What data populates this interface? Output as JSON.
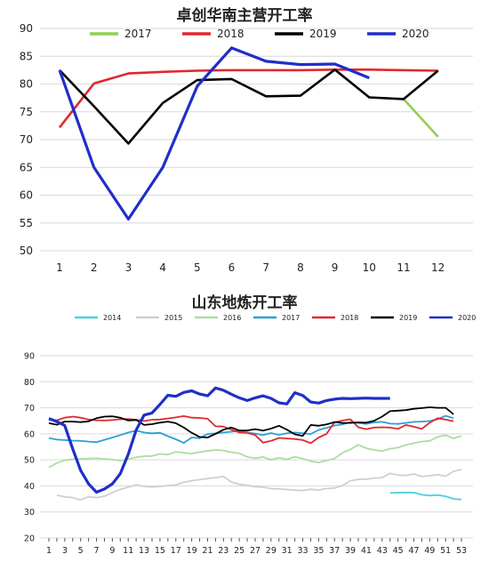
{
  "chart_data": [
    {
      "type": "line",
      "title": "卓创华南主营开工率",
      "xlabel": "",
      "ylabel": "",
      "categories": [
        "1",
        "2",
        "3",
        "4",
        "5",
        "6",
        "7",
        "8",
        "9",
        "10",
        "11",
        "12"
      ],
      "ylim": [
        50,
        90
      ],
      "yticks": [
        50,
        55,
        60,
        65,
        70,
        75,
        80,
        85,
        90
      ],
      "grid": true,
      "legend_position": "top",
      "series": [
        {
          "name": "2017",
          "color": "#92d050",
          "values": [
            null,
            null,
            null,
            null,
            null,
            null,
            null,
            null,
            null,
            null,
            77.3,
            70.5
          ]
        },
        {
          "name": "2018",
          "color": "#e0282e",
          "values": [
            72.2,
            80.1,
            81.9,
            82.2,
            82.4,
            82.5,
            82.5,
            82.5,
            82.6,
            82.6,
            82.5,
            82.4
          ]
        },
        {
          "name": "2019",
          "color": "#000000",
          "values": [
            82.5,
            76.0,
            69.3,
            76.6,
            80.7,
            80.9,
            77.8,
            77.9,
            82.6,
            77.6,
            77.3,
            82.4
          ]
        },
        {
          "name": "2020",
          "color": "#1f2fc8",
          "values": [
            82.5,
            65.0,
            55.7,
            65.0,
            79.6,
            86.5,
            84.1,
            83.5,
            83.6,
            81.1,
            null,
            null
          ]
        }
      ]
    },
    {
      "type": "line",
      "title": "山东地炼开工率",
      "xlabel": "",
      "ylabel": "",
      "categories": [
        "1",
        "3",
        "5",
        "7",
        "9",
        "11",
        "13",
        "15",
        "17",
        "19",
        "21",
        "23",
        "25",
        "27",
        "29",
        "31",
        "33",
        "35",
        "37",
        "39",
        "41",
        "43",
        "45",
        "47",
        "49",
        "51",
        "53"
      ],
      "x_range": [
        1,
        53
      ],
      "ylim": [
        20,
        90
      ],
      "yticks": [
        20,
        30,
        40,
        50,
        60,
        70,
        80,
        90
      ],
      "grid": true,
      "legend_position": "top",
      "series": [
        {
          "name": "2014",
          "color": "#4fd0e0",
          "x": [
            44,
            46,
            47,
            48,
            49,
            50,
            51,
            52,
            53
          ],
          "values": [
            37.3,
            37.5,
            37.4,
            36.6,
            36.3,
            36.5,
            36.0,
            35.0,
            34.8
          ]
        },
        {
          "name": "2015",
          "color": "#cfcfcf",
          "x": [
            2,
            3,
            4,
            5,
            6,
            7,
            8,
            9,
            10,
            11,
            12,
            13,
            14,
            15,
            16,
            17,
            18,
            19,
            20,
            21,
            22,
            23,
            24,
            25,
            26,
            27,
            28,
            29,
            30,
            31,
            32,
            33,
            34,
            35,
            36,
            37,
            38,
            39,
            40,
            41,
            42,
            43,
            44,
            45,
            46,
            47,
            48,
            49,
            50,
            51,
            52,
            53
          ],
          "values": [
            36.5,
            35.8,
            35.5,
            34.6,
            35.8,
            35.5,
            36.0,
            37.5,
            38.7,
            39.5,
            40.4,
            39.8,
            39.6,
            39.8,
            40.1,
            40.4,
            41.4,
            42.0,
            42.4,
            42.8,
            43.2,
            43.6,
            41.5,
            40.6,
            40.2,
            39.7,
            39.5,
            39.0,
            38.8,
            38.6,
            38.4,
            38.2,
            38.7,
            38.4,
            39.0,
            39.2,
            40.1,
            42.0,
            42.5,
            42.6,
            43.0,
            43.2,
            44.8,
            44.2,
            44.0,
            44.6,
            43.6,
            43.9,
            44.3,
            43.7,
            45.6,
            46.3
          ]
        },
        {
          "name": "2016",
          "color": "#a9dea0",
          "x": [
            1,
            2,
            3,
            4,
            5,
            6,
            7,
            8,
            9,
            10,
            11,
            12,
            13,
            14,
            15,
            16,
            17,
            18,
            19,
            20,
            21,
            22,
            23,
            24,
            25,
            26,
            27,
            28,
            29,
            30,
            31,
            32,
            33,
            34,
            35,
            36,
            37,
            38,
            39,
            40,
            41,
            42,
            43,
            44,
            45,
            46,
            47,
            48,
            49,
            50,
            51,
            52,
            53
          ],
          "values": [
            47.0,
            48.8,
            49.8,
            50.3,
            50.4,
            50.5,
            50.6,
            50.4,
            50.1,
            49.7,
            50.3,
            51.0,
            51.4,
            51.5,
            52.3,
            52.0,
            53.1,
            52.7,
            52.4,
            53.0,
            53.4,
            53.8,
            53.6,
            52.9,
            52.5,
            51.1,
            50.6,
            51.1,
            50.0,
            50.8,
            50.2,
            51.2,
            50.5,
            49.5,
            49.0,
            49.8,
            50.5,
            52.7,
            54.0,
            55.8,
            54.5,
            53.8,
            53.4,
            54.3,
            54.7,
            55.7,
            56.4,
            57.0,
            57.3,
            58.8,
            59.5,
            58.2,
            59.2
          ]
        },
        {
          "name": "2017",
          "color": "#2aa0d8",
          "x": [
            1,
            2,
            3,
            4,
            5,
            6,
            7,
            8,
            9,
            10,
            11,
            12,
            13,
            14,
            15,
            16,
            17,
            18,
            19,
            20,
            21,
            22,
            23,
            24,
            25,
            26,
            27,
            28,
            29,
            30,
            31,
            32,
            33,
            34,
            35,
            36,
            37,
            38,
            39,
            40,
            41,
            42,
            43,
            44,
            45,
            46,
            47,
            48,
            49,
            50,
            51,
            52
          ],
          "values": [
            58.3,
            57.8,
            57.6,
            57.4,
            57.3,
            57.0,
            56.8,
            57.7,
            58.6,
            59.5,
            60.5,
            61.2,
            60.5,
            60.2,
            60.4,
            59.1,
            57.9,
            56.5,
            58.6,
            58.3,
            59.9,
            60.2,
            60.5,
            60.8,
            61.1,
            60.5,
            60.1,
            59.5,
            60.3,
            59.6,
            60.2,
            60.5,
            60.2,
            59.9,
            61.5,
            62.3,
            63.2,
            63.6,
            64.5,
            64.2,
            63.8,
            64.4,
            64.6,
            63.9,
            63.8,
            64.2,
            64.6,
            64.7,
            64.9,
            65.6,
            66.9,
            66.0
          ]
        },
        {
          "name": "2018",
          "color": "#e0282e",
          "x": [
            1,
            2,
            3,
            4,
            5,
            6,
            7,
            8,
            9,
            10,
            11,
            12,
            13,
            14,
            15,
            16,
            17,
            18,
            19,
            20,
            21,
            22,
            23,
            24,
            25,
            26,
            27,
            28,
            29,
            30,
            31,
            32,
            33,
            34,
            35,
            36,
            37,
            38,
            39,
            40,
            41,
            42,
            43,
            44,
            45,
            46,
            47,
            48,
            49,
            50,
            51,
            52
          ],
          "values": [
            65.4,
            65.2,
            66.2,
            66.6,
            66.2,
            65.5,
            65.2,
            65.1,
            65.3,
            65.6,
            65.7,
            65.4,
            64.9,
            65.4,
            65.5,
            65.9,
            66.3,
            66.8,
            66.2,
            66.1,
            65.8,
            62.9,
            62.8,
            61.6,
            60.5,
            60.4,
            59.5,
            56.6,
            57.3,
            58.4,
            58.2,
            58.0,
            57.6,
            56.4,
            58.6,
            60.0,
            64.4,
            65.1,
            65.6,
            62.5,
            61.8,
            62.4,
            62.5,
            62.4,
            61.9,
            63.4,
            62.7,
            61.9,
            64.3,
            66.0,
            65.5,
            64.8
          ]
        },
        {
          "name": "2019",
          "color": "#000000",
          "x": [
            1,
            2,
            3,
            4,
            5,
            6,
            7,
            8,
            9,
            10,
            11,
            12,
            13,
            14,
            15,
            16,
            17,
            18,
            19,
            20,
            21,
            22,
            23,
            24,
            25,
            26,
            27,
            28,
            29,
            30,
            31,
            32,
            33,
            34,
            35,
            36,
            37,
            38,
            39,
            40,
            41,
            42,
            43,
            44,
            45,
            46,
            47,
            48,
            49,
            50,
            51,
            52
          ],
          "values": [
            64.1,
            63.5,
            64.7,
            64.7,
            64.5,
            64.8,
            66.0,
            66.6,
            66.7,
            66.2,
            65.1,
            65.3,
            63.4,
            63.7,
            64.3,
            64.7,
            64.1,
            62.4,
            60.4,
            58.8,
            58.6,
            60.0,
            61.6,
            62.4,
            61.3,
            61.3,
            61.8,
            61.2,
            62.0,
            63.1,
            61.6,
            59.8,
            59.2,
            63.4,
            63.1,
            63.6,
            64.5,
            64.2,
            64.2,
            64.4,
            64.3,
            65.0,
            66.6,
            68.7,
            68.9,
            69.1,
            69.6,
            69.9,
            70.2,
            70.0,
            70.0,
            67.5
          ]
        },
        {
          "name": "2020",
          "color": "#1f2fc8",
          "x": [
            1,
            2,
            3,
            4,
            5,
            6,
            7,
            8,
            9,
            10,
            11,
            12,
            13,
            14,
            15,
            16,
            17,
            18,
            19,
            20,
            21,
            22,
            23,
            24,
            25,
            26,
            27,
            28,
            29,
            30,
            31,
            32,
            33,
            34,
            35,
            36,
            37,
            38,
            39,
            40,
            41,
            42,
            43,
            44
          ],
          "values": [
            65.9,
            64.7,
            63.2,
            54.2,
            46.0,
            40.8,
            37.6,
            38.8,
            40.8,
            44.7,
            52.1,
            61.5,
            67.2,
            68.0,
            71.3,
            74.8,
            74.4,
            75.9,
            76.5,
            75.3,
            74.6,
            77.6,
            76.7,
            75.2,
            73.8,
            72.8,
            73.8,
            74.6,
            73.6,
            71.9,
            71.5,
            75.8,
            74.7,
            72.2,
            71.8,
            72.8,
            73.3,
            73.6,
            73.5,
            73.6,
            73.7,
            73.6,
            73.6,
            73.6
          ]
        }
      ]
    }
  ]
}
